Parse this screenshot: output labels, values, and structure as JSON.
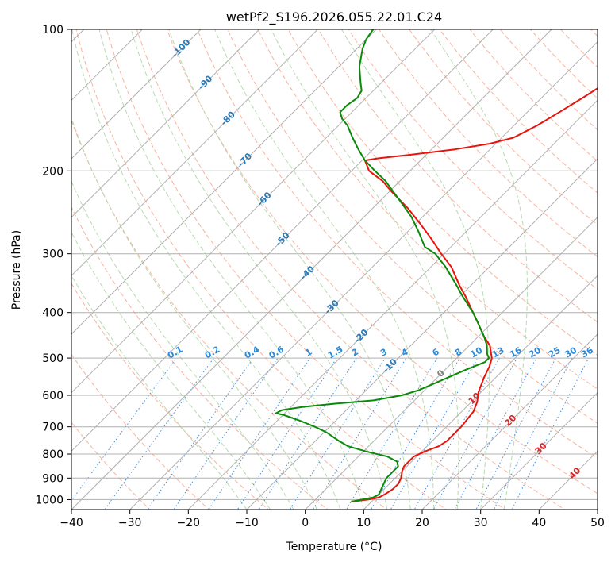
{
  "chart_data": {
    "type": "line",
    "subtype": "skew-t log-p diagram",
    "title": "wetPf2_S196.2026.055.22.01.C24",
    "xlabel": "Temperature (°C)",
    "ylabel": "Pressure (hPa)",
    "xlim": [
      -40,
      50
    ],
    "ylim": [
      1050,
      100
    ],
    "y_scale": "log",
    "grid": true,
    "x_ticks": [
      -40,
      -30,
      -20,
      -10,
      0,
      10,
      20,
      30,
      40,
      50
    ],
    "y_ticks": [
      100,
      200,
      300,
      400,
      500,
      600,
      700,
      800,
      900,
      1000
    ],
    "skew_isotherm_labels": [
      "-100",
      "-90",
      "-80",
      "-70",
      "-60",
      "-50",
      "-40",
      "-30",
      "-20",
      "-10",
      "0",
      "10",
      "20",
      "30",
      "40"
    ],
    "skew_isotherm_values": [
      -100,
      -90,
      -80,
      -70,
      -60,
      -50,
      -40,
      -30,
      -20,
      -10,
      0,
      10,
      20,
      30,
      40
    ],
    "mixing_ratio_labels": [
      "0.1",
      "0.2",
      "0.4",
      "0.6",
      "1",
      "1.5",
      "2",
      "3",
      "4",
      "6",
      "8",
      "10",
      "13",
      "16",
      "20",
      "25",
      "30",
      "36"
    ],
    "mixing_ratio_values": [
      0.1,
      0.2,
      0.4,
      0.6,
      1,
      1.5,
      2,
      3,
      4,
      6,
      8,
      10,
      13,
      16,
      20,
      25,
      30,
      36
    ],
    "colors": {
      "temperature": "#e8140c",
      "dewpoint": "#0a8a0a",
      "isotherm": "#b0b0b0",
      "dry_adiabat": "#f7b39f",
      "moist_adiabat": "#b7dbb0",
      "mixing_ratio": "#4a90d9",
      "isotherm_label_cold": "#2a7ab6",
      "isotherm_label_zero": "#808080",
      "isotherm_label_warm": "#d62728",
      "mixing_label": "#2c8ad8"
    },
    "series": [
      {
        "name": "Temperature",
        "points": [
          {
            "p": 1010,
            "t": 6.5
          },
          {
            "p": 1000,
            "t": 9.0
          },
          {
            "p": 990,
            "t": 10.5
          },
          {
            "p": 975,
            "t": 11.0
          },
          {
            "p": 950,
            "t": 11.5
          },
          {
            "p": 925,
            "t": 11.5
          },
          {
            "p": 900,
            "t": 11.0
          },
          {
            "p": 870,
            "t": 10.0
          },
          {
            "p": 850,
            "t": 9.5
          },
          {
            "p": 830,
            "t": 9.5
          },
          {
            "p": 810,
            "t": 9.5
          },
          {
            "p": 790,
            "t": 10.5
          },
          {
            "p": 770,
            "t": 12.0
          },
          {
            "p": 750,
            "t": 12.5
          },
          {
            "p": 700,
            "t": 12.5
          },
          {
            "p": 650,
            "t": 12.0
          },
          {
            "p": 620,
            "t": 11.0
          },
          {
            "p": 590,
            "t": 9.5
          },
          {
            "p": 550,
            "t": 8.0
          },
          {
            "p": 520,
            "t": 7.0
          },
          {
            "p": 500,
            "t": 6.0
          },
          {
            "p": 470,
            "t": 3.5
          },
          {
            "p": 450,
            "t": 1.0
          },
          {
            "p": 420,
            "t": -2.5
          },
          {
            "p": 400,
            "t": -5.0
          },
          {
            "p": 370,
            "t": -9.0
          },
          {
            "p": 350,
            "t": -12.0
          },
          {
            "p": 320,
            "t": -16.5
          },
          {
            "p": 300,
            "t": -20.5
          },
          {
            "p": 280,
            "t": -24.5
          },
          {
            "p": 260,
            "t": -29.0
          },
          {
            "p": 240,
            "t": -34.0
          },
          {
            "p": 220,
            "t": -40.0
          },
          {
            "p": 210,
            "t": -43.0
          },
          {
            "p": 200,
            "t": -47.0
          },
          {
            "p": 190,
            "t": -49.5
          },
          {
            "p": 188,
            "t": -47.5
          },
          {
            "p": 185,
            "t": -43.0
          },
          {
            "p": 180,
            "t": -36.0
          },
          {
            "p": 175,
            "t": -31.0
          },
          {
            "p": 170,
            "t": -28.0
          },
          {
            "p": 165,
            "t": -27.0
          },
          {
            "p": 160,
            "t": -26.0
          },
          {
            "p": 150,
            "t": -24.5
          },
          {
            "p": 140,
            "t": -23.0
          },
          {
            "p": 130,
            "t": -21.5
          },
          {
            "p": 120,
            "t": -20.5
          },
          {
            "p": 110,
            "t": -20.5
          },
          {
            "p": 105,
            "t": -19.5
          },
          {
            "p": 100,
            "t": -18.5
          }
        ]
      },
      {
        "name": "Dewpoint",
        "points": [
          {
            "p": 1010,
            "t": 6.5
          },
          {
            "p": 1000,
            "t": 8.0
          },
          {
            "p": 990,
            "t": 9.5
          },
          {
            "p": 975,
            "t": 10.0
          },
          {
            "p": 950,
            "t": 9.5
          },
          {
            "p": 925,
            "t": 9.0
          },
          {
            "p": 900,
            "t": 8.5
          },
          {
            "p": 870,
            "t": 8.5
          },
          {
            "p": 850,
            "t": 8.5
          },
          {
            "p": 830,
            "t": 7.5
          },
          {
            "p": 810,
            "t": 5.0
          },
          {
            "p": 790,
            "t": 0.5
          },
          {
            "p": 770,
            "t": -3.5
          },
          {
            "p": 750,
            "t": -6.0
          },
          {
            "p": 720,
            "t": -9.5
          },
          {
            "p": 700,
            "t": -12.5
          },
          {
            "p": 680,
            "t": -16.0
          },
          {
            "p": 660,
            "t": -20.0
          },
          {
            "p": 655,
            "t": -21.5
          },
          {
            "p": 645,
            "t": -21.0
          },
          {
            "p": 635,
            "t": -18.0
          },
          {
            "p": 625,
            "t": -13.0
          },
          {
            "p": 615,
            "t": -7.0
          },
          {
            "p": 600,
            "t": -3.0
          },
          {
            "p": 585,
            "t": -1.0
          },
          {
            "p": 560,
            "t": 1.0
          },
          {
            "p": 530,
            "t": 3.5
          },
          {
            "p": 510,
            "t": 5.5
          },
          {
            "p": 500,
            "t": 5.5
          },
          {
            "p": 490,
            "t": 4.5
          },
          {
            "p": 470,
            "t": 3.0
          },
          {
            "p": 450,
            "t": 1.0
          },
          {
            "p": 420,
            "t": -2.5
          },
          {
            "p": 400,
            "t": -5.0
          },
          {
            "p": 370,
            "t": -9.5
          },
          {
            "p": 350,
            "t": -12.5
          },
          {
            "p": 320,
            "t": -17.5
          },
          {
            "p": 300,
            "t": -21.5
          },
          {
            "p": 290,
            "t": -24.5
          },
          {
            "p": 270,
            "t": -28.0
          },
          {
            "p": 250,
            "t": -32.0
          },
          {
            "p": 230,
            "t": -37.0
          },
          {
            "p": 210,
            "t": -42.5
          },
          {
            "p": 200,
            "t": -46.0
          },
          {
            "p": 190,
            "t": -49.5
          },
          {
            "p": 180,
            "t": -52.5
          },
          {
            "p": 170,
            "t": -55.5
          },
          {
            "p": 160,
            "t": -58.5
          },
          {
            "p": 155,
            "t": -60.5
          },
          {
            "p": 150,
            "t": -62.0
          },
          {
            "p": 145,
            "t": -62.0
          },
          {
            "p": 140,
            "t": -61.5
          },
          {
            "p": 135,
            "t": -62.0
          },
          {
            "p": 130,
            "t": -63.5
          },
          {
            "p": 120,
            "t": -66.5
          },
          {
            "p": 110,
            "t": -69.0
          },
          {
            "p": 105,
            "t": -70.0
          },
          {
            "p": 100,
            "t": -70.5
          }
        ]
      }
    ]
  }
}
